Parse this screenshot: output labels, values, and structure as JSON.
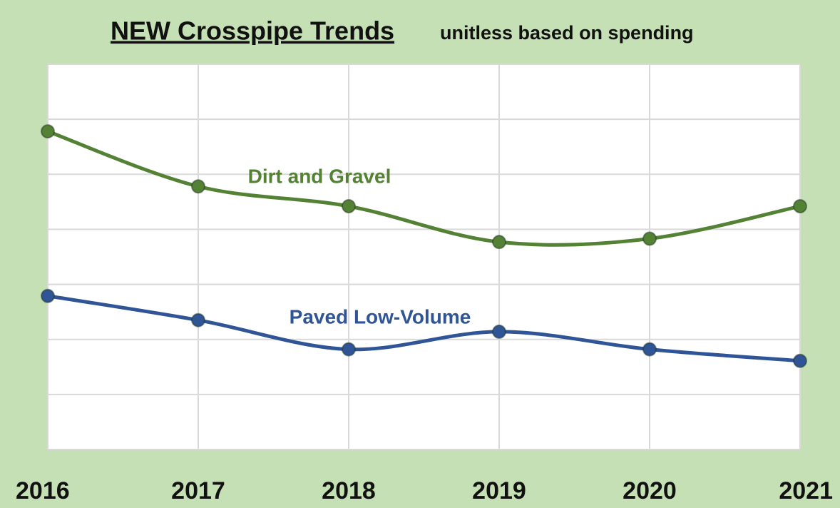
{
  "chart_data": {
    "type": "line",
    "title": "NEW Crosspipe Trends",
    "subtitle": "unitless based on spending",
    "categories": [
      "2016",
      "2017",
      "2018",
      "2019",
      "2020",
      "2021"
    ],
    "series": [
      {
        "name": "Dirt and Gravel",
        "color": "#548235",
        "values": [
          5.78,
          4.78,
          4.42,
          3.77,
          3.83,
          4.42
        ]
      },
      {
        "name": "Paved Low-Volume",
        "color": "#2f5597",
        "values": [
          2.79,
          2.35,
          1.82,
          2.14,
          1.82,
          1.61
        ]
      }
    ],
    "ylim": [
      0,
      7
    ],
    "yticks": [
      0,
      1,
      2,
      3,
      4,
      5,
      6,
      7
    ],
    "grid": true
  }
}
